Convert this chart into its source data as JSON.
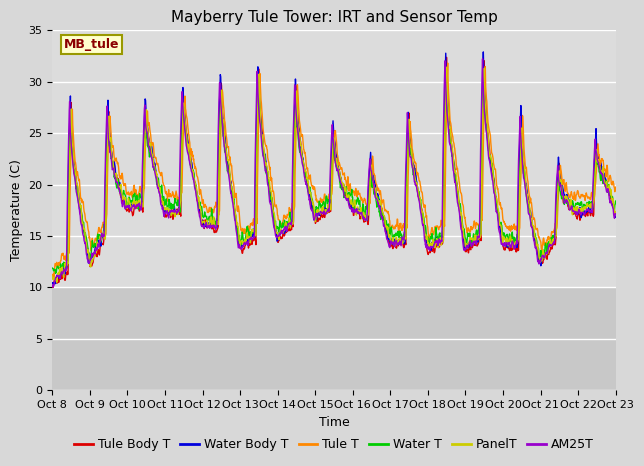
{
  "title": "Mayberry Tule Tower: IRT and Sensor Temp",
  "xlabel": "Time",
  "ylabel": "Temperature (C)",
  "ylim": [
    0,
    35
  ],
  "yticks": [
    0,
    5,
    10,
    15,
    20,
    25,
    30,
    35
  ],
  "xtick_labels": [
    "Oct 8",
    "Oct 9",
    "Oct 10",
    "Oct 11",
    "Oct 12",
    "Oct 13",
    "Oct 14",
    "Oct 15",
    "Oct 16",
    "Oct 17",
    "Oct 18",
    "Oct 19",
    "Oct 20",
    "Oct 21",
    "Oct 22",
    "Oct 23"
  ],
  "legend_label": "MB_tule",
  "series_labels": [
    "Tule Body T",
    "Water Body T",
    "Tule T",
    "Water T",
    "PanelT",
    "AM25T"
  ],
  "series_colors": [
    "#dd0000",
    "#0000dd",
    "#ff8800",
    "#00cc00",
    "#cccc00",
    "#9900cc"
  ],
  "fig_bg_color": "#d8d8d8",
  "plot_bg_upper": "#dcdcdc",
  "plot_bg_lower": "#c8c8c8",
  "grid_color": "#ffffff",
  "title_fontsize": 11,
  "axis_fontsize": 9,
  "tick_fontsize": 8,
  "legend_fontsize": 9,
  "n_days": 15,
  "pts_per_day": 96
}
